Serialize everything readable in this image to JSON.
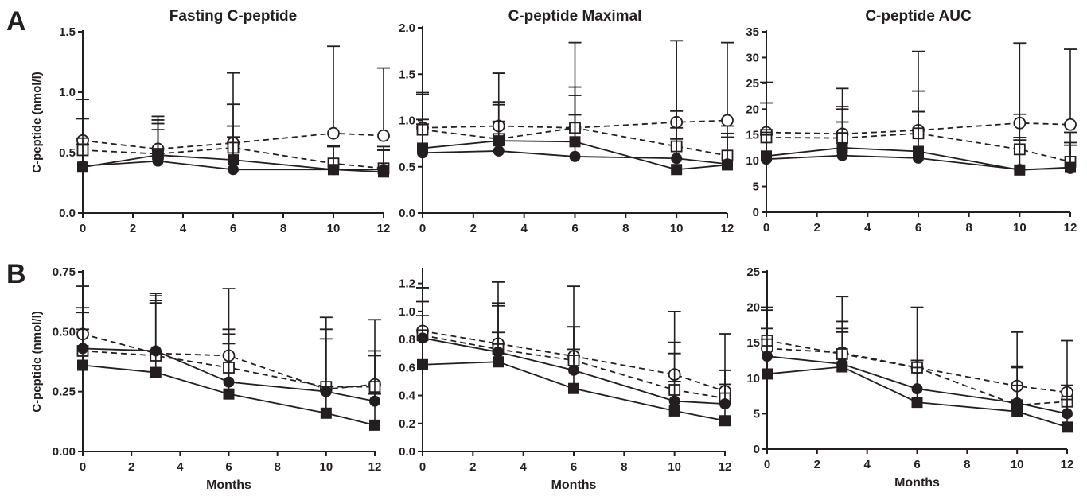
{
  "panel_labels": {
    "a": "A",
    "b": "B"
  },
  "axis_label_y": "C-peptide (nmol/l)",
  "axis_label_x": "Months",
  "chart_data": [
    {
      "panel": "A",
      "title": "Fasting C-peptide",
      "type": "line",
      "ylabel": "C-peptide (nmol/l)",
      "xlabel": "",
      "xlim": [
        0,
        12
      ],
      "ylim": [
        0,
        1.5
      ],
      "xticks": [
        "0",
        "2",
        "4",
        "6",
        "8",
        "10",
        "12"
      ],
      "yticks": [
        "0.0",
        "0.5",
        "1.0",
        "1.5"
      ],
      "x": [
        0,
        3,
        6,
        10,
        12
      ],
      "series": [
        {
          "marker": "open-circle",
          "line": "dashed",
          "values": [
            0.6,
            0.53,
            0.58,
            0.66,
            0.64
          ],
          "err_up": [
            0.94,
            0.74,
            1.16,
            1.38,
            1.2
          ]
        },
        {
          "marker": "open-square",
          "line": "dashed",
          "values": [
            0.52,
            0.49,
            0.54,
            0.41,
            0.37
          ],
          "err_up": [
            0.78,
            0.8,
            0.9,
            0.55,
            0.55
          ]
        },
        {
          "marker": "filled-circle",
          "line": "solid",
          "values": [
            0.39,
            0.43,
            0.36,
            0.36,
            0.36
          ],
          "err_up": [
            0.57,
            0.69,
            0.63,
            0.55,
            0.52
          ]
        },
        {
          "marker": "filled-square",
          "line": "solid",
          "values": [
            0.38,
            0.48,
            0.44,
            0.36,
            0.34
          ],
          "err_up": [
            0.62,
            0.77,
            0.72,
            0.56,
            0.52
          ]
        }
      ]
    },
    {
      "panel": "A",
      "title": "C-peptide Maximal",
      "type": "line",
      "ylabel": "",
      "xlabel": "",
      "xlim": [
        0,
        12
      ],
      "ylim": [
        0,
        2.0
      ],
      "xticks": [
        "0",
        "2",
        "4",
        "6",
        "8",
        "10",
        "12"
      ],
      "yticks": [
        "0.0",
        "0.5",
        "1.0",
        "1.5",
        "2.0"
      ],
      "x": [
        0,
        3,
        6,
        10,
        12
      ],
      "series": [
        {
          "marker": "open-circle",
          "line": "dashed",
          "values": [
            0.92,
            0.94,
            0.92,
            0.98,
            1.0
          ],
          "err_up": [
            1.3,
            1.51,
            1.84,
            1.86,
            1.84
          ]
        },
        {
          "marker": "open-square",
          "line": "dashed",
          "values": [
            0.9,
            0.8,
            0.92,
            0.72,
            0.62
          ],
          "err_up": [
            1.28,
            1.2,
            1.36,
            1.1,
            0.94
          ]
        },
        {
          "marker": "filled-circle",
          "line": "solid",
          "values": [
            0.65,
            0.67,
            0.61,
            0.59,
            0.53
          ],
          "err_up": [
            0.96,
            0.99,
            1.06,
            0.92,
            0.82
          ]
        },
        {
          "marker": "filled-square",
          "line": "solid",
          "values": [
            0.7,
            0.78,
            0.77,
            0.47,
            0.52
          ],
          "err_up": [
            1.01,
            1.17,
            1.27,
            0.8,
            0.86
          ]
        }
      ]
    },
    {
      "panel": "A",
      "title": "C-peptide AUC",
      "type": "line",
      "ylabel": "",
      "xlabel": "",
      "xlim": [
        0,
        12
      ],
      "ylim": [
        0,
        35
      ],
      "xticks": [
        "0",
        "2",
        "4",
        "6",
        "8",
        "10",
        "12"
      ],
      "yticks": [
        "0",
        "5",
        "10",
        "15",
        "20",
        "25",
        "30",
        "35"
      ],
      "x": [
        0,
        3,
        6,
        10,
        12
      ],
      "series": [
        {
          "marker": "open-circle",
          "line": "dashed",
          "values": [
            15.5,
            15.2,
            15.9,
            17.3,
            17.0
          ],
          "err_up": [
            25.2,
            24.0,
            31.2,
            32.8,
            31.6
          ]
        },
        {
          "marker": "open-square",
          "line": "dashed",
          "values": [
            14.5,
            14.4,
            15.3,
            12.2,
            9.8
          ],
          "err_up": [
            21.2,
            20.5,
            23.5,
            19.0,
            15.5
          ]
        },
        {
          "marker": "filled-circle",
          "line": "solid",
          "values": [
            10.3,
            11.0,
            10.5,
            8.3,
            8.5
          ],
          "err_up": [
            15.0,
            17.5,
            19.5,
            14.5,
            13.0
          ]
        },
        {
          "marker": "filled-square",
          "line": "solid",
          "values": [
            10.9,
            12.5,
            11.8,
            8.2,
            8.7
          ],
          "err_up": [
            16.0,
            20.0,
            19.5,
            14.0,
            13.5
          ]
        }
      ]
    },
    {
      "panel": "B",
      "title": "",
      "type": "line",
      "ylabel": "C-peptide (nmol/l)",
      "xlabel": "Months",
      "xlim": [
        0,
        12
      ],
      "ylim": [
        0,
        0.75
      ],
      "xticks": [
        "0",
        "2",
        "4",
        "6",
        "8",
        "10",
        "12"
      ],
      "yticks": [
        "0.00",
        "0.25",
        "0.50",
        "0.75"
      ],
      "x": [
        0,
        3,
        6,
        10,
        12
      ],
      "series": [
        {
          "marker": "open-circle",
          "line": "dashed",
          "values": [
            0.49,
            0.41,
            0.4,
            0.26,
            0.28
          ],
          "err_up": [
            0.69,
            0.66,
            0.68,
            0.56,
            0.55
          ]
        },
        {
          "marker": "open-square",
          "line": "dashed",
          "values": [
            0.42,
            0.4,
            0.35,
            0.27,
            0.27
          ],
          "err_up": [
            0.6,
            0.65,
            0.51,
            0.51,
            0.42
          ]
        },
        {
          "marker": "filled-circle",
          "line": "solid",
          "values": [
            0.43,
            0.42,
            0.29,
            0.25,
            0.21
          ],
          "err_up": [
            0.58,
            0.63,
            0.49,
            0.47,
            0.4
          ]
        },
        {
          "marker": "filled-square",
          "line": "solid",
          "values": [
            0.36,
            0.33,
            0.24,
            0.16,
            0.11
          ],
          "err_up": [
            0.51,
            0.62,
            0.45,
            0.27,
            0.24
          ]
        }
      ]
    },
    {
      "panel": "B",
      "title": "",
      "type": "line",
      "ylabel": "",
      "xlabel": "Months",
      "xlim": [
        0,
        12
      ],
      "ylim": [
        0,
        1.3
      ],
      "xticks": [
        "0",
        "2",
        "4",
        "6",
        "8",
        "10",
        "12"
      ],
      "yticks": [
        "0.0",
        "0.2",
        "0.4",
        "0.6",
        "0.8",
        "1.0",
        "1.2"
      ],
      "x": [
        0,
        3,
        6,
        10,
        12
      ],
      "series": [
        {
          "marker": "open-circle",
          "line": "dashed",
          "values": [
            0.86,
            0.77,
            0.68,
            0.55,
            0.43
          ],
          "err_up": [
            1.17,
            1.21,
            1.18,
            1.0,
            0.84
          ]
        },
        {
          "marker": "open-square",
          "line": "dashed",
          "values": [
            0.83,
            0.73,
            0.65,
            0.44,
            0.38
          ],
          "err_up": [
            1.17,
            1.06,
            0.89,
            0.78,
            0.58
          ]
        },
        {
          "marker": "filled-circle",
          "line": "solid",
          "values": [
            0.81,
            0.71,
            0.58,
            0.36,
            0.34
          ],
          "err_up": [
            1.07,
            1.04,
            0.89,
            0.7,
            0.58
          ]
        },
        {
          "marker": "filled-square",
          "line": "solid",
          "values": [
            0.62,
            0.64,
            0.45,
            0.29,
            0.22
          ],
          "err_up": [
            0.97,
            0.85,
            0.73,
            0.5,
            0.48
          ]
        }
      ]
    },
    {
      "panel": "B",
      "title": "",
      "type": "line",
      "ylabel": "",
      "xlabel": "Months",
      "xlim": [
        0,
        12
      ],
      "ylim": [
        0,
        25
      ],
      "xticks": [
        "0",
        "2",
        "4",
        "6",
        "8",
        "10",
        "12"
      ],
      "yticks": [
        "0",
        "5",
        "10",
        "15",
        "20",
        "25"
      ],
      "x": [
        0,
        3,
        6,
        10,
        12
      ],
      "series": [
        {
          "marker": "open-circle",
          "line": "dashed",
          "values": [
            14.2,
            13.6,
            11.5,
            8.9,
            8.0
          ],
          "err_up": [
            19.6,
            21.5,
            20.0,
            16.5,
            15.3
          ]
        },
        {
          "marker": "open-square",
          "line": "dashed",
          "values": [
            15.3,
            13.4,
            11.5,
            6.2,
            6.7
          ],
          "err_up": [
            20.0,
            18.0,
            12.5,
            11.7,
            9.0
          ]
        },
        {
          "marker": "filled-circle",
          "line": "solid",
          "values": [
            13.1,
            12.0,
            8.5,
            6.5,
            5.0
          ],
          "err_up": [
            17.0,
            17.0,
            12.5,
            11.5,
            9.0
          ]
        },
        {
          "marker": "filled-square",
          "line": "solid",
          "values": [
            10.6,
            11.6,
            6.6,
            5.3,
            3.1
          ],
          "err_up": [
            15.5,
            16.5,
            11.5,
            9.0,
            7.0
          ]
        }
      ]
    }
  ]
}
